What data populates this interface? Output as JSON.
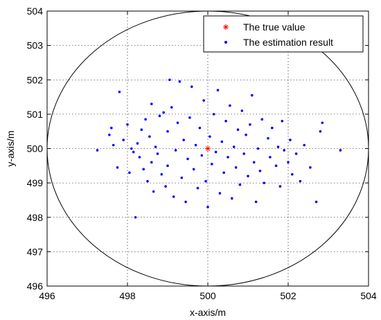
{
  "chart_data": {
    "type": "scatter",
    "xlabel": "x-axis/m",
    "ylabel": "y-axis/m",
    "xlim": [
      496,
      504
    ],
    "ylim": [
      496,
      504
    ],
    "xticks": [
      "496",
      "498",
      "500",
      "502",
      "504"
    ],
    "yticks": [
      "496",
      "497",
      "498",
      "499",
      "500",
      "501",
      "502",
      "503",
      "504"
    ],
    "grid": true,
    "legend_position": "top-right",
    "circle": {
      "center": [
        500,
        500
      ],
      "radius": 4,
      "color": "#000000"
    },
    "series": [
      {
        "name": "The true value",
        "marker": "*",
        "color": "#ff0000",
        "points": [
          [
            500,
            500
          ]
        ]
      },
      {
        "name": "The estimation result",
        "marker": ".",
        "color": "#0000ff",
        "points": [
          [
            497.25,
            499.95
          ],
          [
            497.55,
            500.4
          ],
          [
            497.6,
            500.6
          ],
          [
            497.65,
            500.1
          ],
          [
            497.75,
            499.45
          ],
          [
            497.8,
            501.65
          ],
          [
            497.9,
            500.25
          ],
          [
            498.0,
            500.7
          ],
          [
            498.05,
            499.3
          ],
          [
            498.1,
            500.0
          ],
          [
            498.15,
            499.9
          ],
          [
            498.2,
            498.0
          ],
          [
            498.25,
            500.15
          ],
          [
            498.3,
            499.75
          ],
          [
            498.35,
            500.55
          ],
          [
            498.4,
            499.4
          ],
          [
            498.45,
            500.85
          ],
          [
            498.5,
            499.05
          ],
          [
            498.55,
            500.35
          ],
          [
            498.6,
            499.6
          ],
          [
            498.6,
            501.3
          ],
          [
            498.65,
            498.75
          ],
          [
            498.7,
            500.05
          ],
          [
            498.75,
            499.85
          ],
          [
            498.8,
            500.95
          ],
          [
            498.85,
            499.25
          ],
          [
            498.9,
            501.05
          ],
          [
            498.95,
            498.9
          ],
          [
            499.0,
            500.5
          ],
          [
            499.0,
            499.5
          ],
          [
            499.05,
            502.0
          ],
          [
            499.1,
            501.2
          ],
          [
            499.15,
            498.6
          ],
          [
            499.2,
            499.95
          ],
          [
            499.25,
            500.75
          ],
          [
            499.3,
            501.95
          ],
          [
            499.35,
            499.15
          ],
          [
            499.4,
            500.25
          ],
          [
            499.45,
            498.45
          ],
          [
            499.5,
            499.7
          ],
          [
            499.55,
            500.9
          ],
          [
            499.6,
            501.8
          ],
          [
            499.65,
            499.4
          ],
          [
            499.7,
            500.1
          ],
          [
            499.75,
            498.85
          ],
          [
            499.8,
            500.6
          ],
          [
            499.85,
            499.8
          ],
          [
            499.9,
            501.4
          ],
          [
            499.95,
            499.05
          ],
          [
            500.0,
            498.3
          ],
          [
            500.05,
            500.35
          ],
          [
            500.1,
            499.55
          ],
          [
            500.15,
            501.0
          ],
          [
            500.2,
            499.9
          ],
          [
            500.25,
            501.7
          ],
          [
            500.3,
            498.7
          ],
          [
            500.35,
            500.2
          ],
          [
            500.4,
            499.3
          ],
          [
            500.45,
            500.8
          ],
          [
            500.5,
            499.75
          ],
          [
            500.55,
            501.25
          ],
          [
            500.6,
            498.55
          ],
          [
            500.65,
            500.05
          ],
          [
            500.7,
            499.45
          ],
          [
            500.75,
            500.55
          ],
          [
            500.8,
            498.95
          ],
          [
            500.85,
            501.1
          ],
          [
            500.9,
            499.85
          ],
          [
            500.95,
            500.4
          ],
          [
            501.0,
            499.2
          ],
          [
            501.05,
            500.7
          ],
          [
            501.1,
            501.55
          ],
          [
            501.15,
            499.6
          ],
          [
            501.2,
            498.45
          ],
          [
            501.25,
            500.0
          ],
          [
            501.3,
            499.35
          ],
          [
            501.35,
            500.85
          ],
          [
            501.4,
            499.0
          ],
          [
            501.5,
            500.3
          ],
          [
            501.55,
            499.75
          ],
          [
            501.6,
            500.6
          ],
          [
            501.7,
            499.5
          ],
          [
            501.75,
            500.05
          ],
          [
            501.8,
            498.9
          ],
          [
            501.85,
            500.8
          ],
          [
            501.9,
            499.95
          ],
          [
            502.0,
            499.6
          ],
          [
            502.05,
            500.25
          ],
          [
            502.1,
            499.25
          ],
          [
            502.2,
            499.85
          ],
          [
            502.3,
            499.05
          ],
          [
            502.4,
            500.1
          ],
          [
            502.55,
            499.45
          ],
          [
            502.7,
            498.45
          ],
          [
            502.8,
            500.5
          ],
          [
            502.85,
            500.75
          ],
          [
            503.3,
            499.95
          ]
        ]
      }
    ]
  }
}
